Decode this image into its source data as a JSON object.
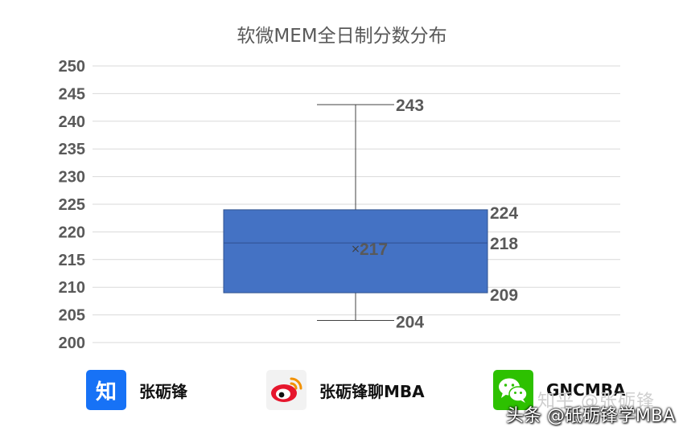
{
  "chart_data": {
    "type": "box",
    "title": "软微MEM全日制分数分布",
    "ylim": [
      200,
      250
    ],
    "y_ticks": [
      250,
      245,
      240,
      235,
      230,
      225,
      220,
      215,
      210,
      205,
      200
    ],
    "grid": true,
    "box": {
      "min": 204,
      "q1": 209,
      "median": 218,
      "mean": 217,
      "q3": 224,
      "max": 243,
      "fill_color": "#4472c4",
      "labels": {
        "max": "243",
        "q3": "224",
        "median": "218",
        "mean": "217",
        "q1": "209",
        "min": "204"
      }
    }
  },
  "footer": {
    "zhihu": {
      "logo_text": "知",
      "name": "张砺锋",
      "icon": "zhihu-icon"
    },
    "weibo": {
      "name": "张砺锋聊MBA",
      "icon": "weibo-icon"
    },
    "wechat": {
      "name": "GNCMBA",
      "icon": "wechat-icon"
    },
    "watermark_faint": "知乎 @张砺锋",
    "watermark": "头条 @砥砺锋学MBA"
  }
}
